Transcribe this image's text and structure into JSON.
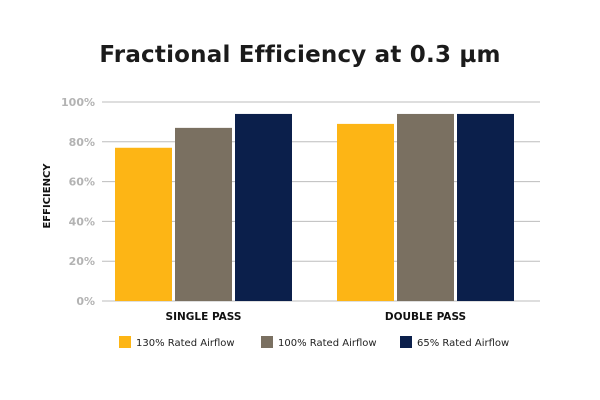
{
  "chart_data": {
    "type": "bar",
    "title": "Fractional Efficiency at 0.3 µm",
    "xlabel": "",
    "ylabel": "EFFICIENCY",
    "categories": [
      "SINGLE PASS",
      "DOUBLE PASS"
    ],
    "series": [
      {
        "name": "130% Rated Airflow",
        "color": "#FDB515",
        "values": [
          77,
          89
        ]
      },
      {
        "name": "100% Rated Airflow",
        "color": "#7A7061",
        "values": [
          87,
          94
        ]
      },
      {
        "name": "65% Rated Airflow",
        "color": "#0B1F4B",
        "values": [
          94,
          94
        ]
      }
    ],
    "ylim": [
      0,
      100
    ],
    "yticks": [
      0,
      20,
      40,
      60,
      80,
      100
    ],
    "ytick_labels": [
      "0%",
      "20%",
      "40%",
      "60%",
      "80%",
      "100%"
    ],
    "grid": true,
    "legend_position": "bottom"
  }
}
